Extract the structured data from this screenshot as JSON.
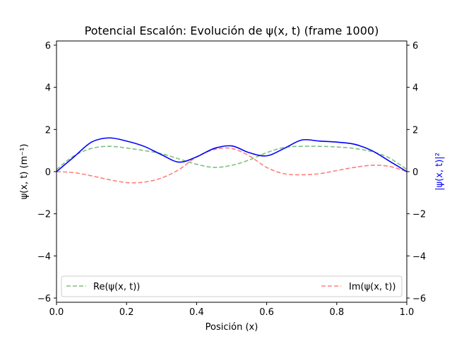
{
  "chart_data": {
    "type": "line",
    "title": "Potencial Escalón: Evolución de ψ(x, t) (frame 1000)",
    "xlabel": "Posición (x)",
    "ylabel": "ψ(x, t) (m⁻¹)",
    "ylabel_right": "|ψ(x, t)|²",
    "xlim": [
      0.0,
      1.0
    ],
    "ylim": [
      -6.2,
      6.2
    ],
    "ylim_right": [
      -6.2,
      6.2
    ],
    "x_ticks": [
      "0.0",
      "0.2",
      "0.4",
      "0.6",
      "0.8",
      "1.0"
    ],
    "y_ticks": [
      "−6",
      "−4",
      "−2",
      "0",
      "2",
      "4",
      "6"
    ],
    "grid": false,
    "legend": {
      "placement": "bottom",
      "entries": [
        "Re(ψ(x, t))",
        "Im(ψ(x, t))"
      ]
    },
    "x": [
      0.0,
      0.05,
      0.1,
      0.15,
      0.2,
      0.25,
      0.3,
      0.35,
      0.4,
      0.45,
      0.5,
      0.55,
      0.6,
      0.65,
      0.7,
      0.75,
      0.8,
      0.85,
      0.9,
      0.95,
      1.0
    ],
    "series": [
      {
        "name": "Re(ψ(x, t))",
        "color": "#008000",
        "style": "dashed",
        "axis": "left",
        "values": [
          0.1,
          0.75,
          1.1,
          1.2,
          1.12,
          1.0,
          0.85,
          0.6,
          0.35,
          0.2,
          0.3,
          0.55,
          0.9,
          1.15,
          1.2,
          1.2,
          1.17,
          1.1,
          0.95,
          0.65,
          0.1
        ]
      },
      {
        "name": "Im(ψ(x, t))",
        "color": "#ff0000",
        "style": "dashed",
        "axis": "left",
        "values": [
          0.0,
          -0.05,
          -0.2,
          -0.38,
          -0.52,
          -0.5,
          -0.3,
          0.1,
          0.7,
          1.05,
          1.1,
          0.75,
          0.2,
          -0.1,
          -0.15,
          -0.1,
          0.05,
          0.2,
          0.3,
          0.25,
          0.0
        ]
      },
      {
        "name": "|ψ(x, t)|²",
        "color": "#0000ff",
        "style": "solid",
        "axis": "right",
        "values": [
          0.0,
          0.7,
          1.4,
          1.6,
          1.45,
          1.2,
          0.8,
          0.45,
          0.7,
          1.1,
          1.22,
          0.9,
          0.75,
          1.1,
          1.5,
          1.45,
          1.4,
          1.3,
          1.0,
          0.5,
          0.0
        ]
      }
    ]
  }
}
